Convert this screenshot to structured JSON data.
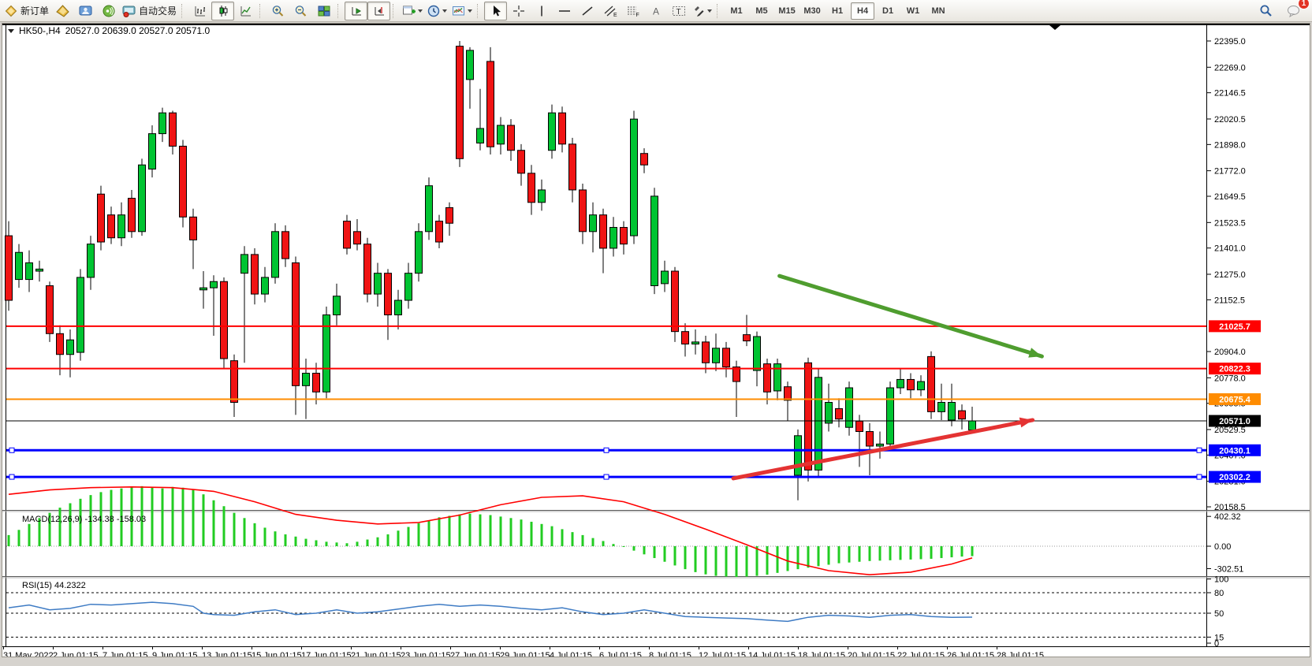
{
  "toolbar": {
    "new_order_label": "新订单",
    "auto_trading_label": "自动交易",
    "timeframes": [
      "M1",
      "M5",
      "M15",
      "M30",
      "H1",
      "H4",
      "D1",
      "W1",
      "MN"
    ],
    "active_timeframe": "H4",
    "notification_count": "1",
    "icons": [
      "new-order",
      "metaeditor",
      "terminal",
      "broadcast",
      "auto-trading",
      "bar-chart",
      "candlestick-chart",
      "line-chart",
      "zoom-in",
      "zoom-out",
      "tile-windows",
      "auto-scroll",
      "chart-shift",
      "new-chart",
      "profiles",
      "templates",
      "cursor",
      "crosshair",
      "vertical-line",
      "horizontal-line",
      "trend-line",
      "equidistant-channel",
      "fibonacci",
      "text",
      "text-label",
      "arrows",
      "search",
      "notifications"
    ]
  },
  "chart": {
    "title_symbol": "HK50-,H4",
    "title_ohlc": "20527.0 20639.0 20527.0 20571.0"
  },
  "chart_data": {
    "type": "candlestick",
    "symbol": "HK50-",
    "period": "H4",
    "current_bar": {
      "open": 20527.0,
      "high": 20639.0,
      "low": 20527.0,
      "close": 20571.0
    },
    "price_axis": {
      "visible_max": 22395.0,
      "visible_min": 20158.5,
      "ticks": [
        22395.0,
        22269.0,
        22146.5,
        22020.5,
        21898.0,
        21772.0,
        21649.5,
        21523.5,
        21401.0,
        21275.0,
        21152.5,
        20904.0,
        20778.0,
        20655.5,
        20529.5,
        20407.0,
        20281.0,
        20158.5
      ]
    },
    "time_labels": [
      "31 May 2022",
      "2 Jun 01:15",
      "7 Jun 01:15",
      "9 Jun 01:15",
      "13 Jun 01:15",
      "15 Jun 01:15",
      "17 Jun 01:15",
      "21 Jun 01:15",
      "23 Jun 01:15",
      "27 Jun 01:15",
      "29 Jun 01:15",
      "4 Jul 01:15",
      "6 Jul 01:15",
      "8 Jul 01:15",
      "12 Jul 01:15",
      "14 Jul 01:15",
      "18 Jul 01:15",
      "20 Jul 01:15",
      "22 Jul 01:15",
      "26 Jul 01:15",
      "28 Jul 01:15"
    ],
    "hlines": [
      {
        "price": 21025.7,
        "color": "#ff0000",
        "width": 2,
        "selected": false
      },
      {
        "price": 20822.3,
        "color": "#ff0000",
        "width": 2,
        "selected": false
      },
      {
        "price": 20675.4,
        "color": "#ff8c00",
        "width": 2,
        "selected": false
      },
      {
        "price": 20571.0,
        "color": "#000000",
        "width": 1,
        "selected": false
      },
      {
        "price": 20430.1,
        "color": "#0000ff",
        "width": 3,
        "selected": true
      },
      {
        "price": 20302.2,
        "color": "#0000ff",
        "width": 3,
        "selected": true
      }
    ],
    "trend_arrows": [
      {
        "color": "#4f9d2f",
        "from_bar": 75.2,
        "from_price": 21267,
        "to_bar": 100.8,
        "to_price": 20881
      },
      {
        "color": "#e43333",
        "from_bar": 70.7,
        "from_price": 20295,
        "to_bar": 99.9,
        "to_price": 20575
      }
    ],
    "candles": [
      [
        21460,
        21530,
        21100,
        21150
      ],
      [
        21250,
        21420,
        21210,
        21380
      ],
      [
        21250,
        21390,
        21190,
        21330
      ],
      [
        21290,
        21340,
        21240,
        21300
      ],
      [
        21220,
        21240,
        20950,
        20990
      ],
      [
        20990,
        21030,
        20790,
        20890
      ],
      [
        20890,
        21010,
        20780,
        20960
      ],
      [
        20900,
        21300,
        20860,
        21260
      ],
      [
        21260,
        21460,
        21200,
        21420
      ],
      [
        21660,
        21700,
        21390,
        21430
      ],
      [
        21560,
        21600,
        21420,
        21450
      ],
      [
        21450,
        21620,
        21410,
        21560
      ],
      [
        21640,
        21680,
        21450,
        21480
      ],
      [
        21480,
        21830,
        21460,
        21800
      ],
      [
        21780,
        21990,
        21740,
        21950
      ],
      [
        21950,
        22075,
        21910,
        22050
      ],
      [
        22050,
        22060,
        21850,
        21890
      ],
      [
        21890,
        21920,
        21500,
        21550
      ],
      [
        21550,
        21590,
        21300,
        21440
      ],
      [
        21200,
        21290,
        21110,
        21210
      ],
      [
        21210,
        21270,
        20980,
        21240
      ],
      [
        21240,
        21260,
        20820,
        20870
      ],
      [
        20860,
        20890,
        20590,
        20660
      ],
      [
        21280,
        21410,
        20850,
        21370
      ],
      [
        21370,
        21400,
        21130,
        21180
      ],
      [
        21180,
        21310,
        21140,
        21260
      ],
      [
        21260,
        21520,
        21230,
        21480
      ],
      [
        21480,
        21510,
        21310,
        21350
      ],
      [
        21330,
        21360,
        20600,
        20740
      ],
      [
        20740,
        20870,
        20580,
        20800
      ],
      [
        20800,
        20850,
        20650,
        20710
      ],
      [
        20710,
        21120,
        20680,
        21080
      ],
      [
        21080,
        21230,
        21030,
        21170
      ],
      [
        21530,
        21560,
        21370,
        21400
      ],
      [
        21480,
        21540,
        21390,
        21420
      ],
      [
        21420,
        21450,
        21140,
        21180
      ],
      [
        21180,
        21330,
        21120,
        21280
      ],
      [
        21280,
        21300,
        20960,
        21080
      ],
      [
        21080,
        21200,
        21010,
        21150
      ],
      [
        21150,
        21330,
        21110,
        21280
      ],
      [
        21280,
        21520,
        21240,
        21480
      ],
      [
        21480,
        21740,
        21440,
        21700
      ],
      [
        21530,
        21560,
        21400,
        21430
      ],
      [
        21595,
        21620,
        21460,
        21520
      ],
      [
        22370,
        22395,
        21790,
        21830
      ],
      [
        22210,
        22365,
        22070,
        22350
      ],
      [
        21905,
        22165,
        21870,
        21975
      ],
      [
        22297,
        22365,
        21850,
        21887
      ],
      [
        21900,
        22030,
        21850,
        21990
      ],
      [
        21990,
        22020,
        21820,
        21870
      ],
      [
        21870,
        21900,
        21700,
        21760
      ],
      [
        21760,
        21800,
        21560,
        21620
      ],
      [
        21620,
        21730,
        21580,
        21680
      ],
      [
        21870,
        22090,
        21830,
        22050
      ],
      [
        22050,
        22080,
        21860,
        21900
      ],
      [
        21900,
        21930,
        21620,
        21680
      ],
      [
        21680,
        21710,
        21420,
        21480
      ],
      [
        21480,
        21620,
        21380,
        21560
      ],
      [
        21560,
        21590,
        21280,
        21400
      ],
      [
        21400,
        21550,
        21360,
        21500
      ],
      [
        21500,
        21530,
        21370,
        21420
      ],
      [
        21460,
        22060,
        21420,
        22020
      ],
      [
        21855,
        21880,
        21760,
        21800
      ],
      [
        21220,
        21690,
        21180,
        21650
      ],
      [
        21230,
        21340,
        21190,
        21290
      ],
      [
        21290,
        21310,
        20950,
        21000
      ],
      [
        21000,
        21040,
        20880,
        20940
      ],
      [
        20940,
        21010,
        20890,
        20950
      ],
      [
        20950,
        20980,
        20800,
        20850
      ],
      [
        20850,
        20990,
        20810,
        20920
      ],
      [
        20920,
        20950,
        20780,
        20830
      ],
      [
        20830,
        20860,
        20590,
        20760
      ],
      [
        20985,
        21080,
        20930,
        20955
      ],
      [
        20813,
        21000,
        20737,
        20976
      ],
      [
        20845,
        20870,
        20650,
        20710
      ],
      [
        20715,
        20870,
        20670,
        20845
      ],
      [
        20735,
        20760,
        20570,
        20670
      ],
      [
        20310,
        20530,
        20190,
        20500
      ],
      [
        20850,
        20875,
        20280,
        20335
      ],
      [
        20335,
        20820,
        20300,
        20780
      ],
      [
        20560,
        20750,
        20520,
        20660
      ],
      [
        20630,
        20680,
        20540,
        20580
      ],
      [
        20540,
        20760,
        20500,
        20730
      ],
      [
        20570,
        20600,
        20350,
        20520
      ],
      [
        20520,
        20560,
        20310,
        20450
      ],
      [
        20450,
        20520,
        20390,
        20460
      ],
      [
        20460,
        20760,
        20430,
        20730
      ],
      [
        20730,
        20820,
        20700,
        20770
      ],
      [
        20770,
        20800,
        20680,
        20720
      ],
      [
        20720,
        20790,
        20690,
        20760
      ],
      [
        20880,
        20905,
        20580,
        20615
      ],
      [
        20615,
        20750,
        20575,
        20660
      ],
      [
        20575,
        20750,
        20545,
        20660
      ],
      [
        20620,
        20650,
        20530,
        20580
      ],
      [
        20527,
        20639,
        20527,
        20571
      ]
    ],
    "macd": {
      "label": "MACD(12,26,9)",
      "value": "-134.38",
      "signal_value": "-158.03",
      "axis_ticks": [
        402.32,
        0.0,
        -302.51
      ],
      "histogram": [
        150,
        220,
        300,
        380,
        450,
        520,
        580,
        640,
        690,
        730,
        760,
        780,
        800,
        810,
        800,
        780,
        800,
        790,
        760,
        700,
        620,
        540,
        450,
        380,
        310,
        250,
        200,
        160,
        130,
        100,
        80,
        60,
        50,
        40,
        60,
        90,
        120,
        160,
        210,
        260,
        310,
        350,
        390,
        410,
        430,
        440,
        430,
        420,
        400,
        380,
        360,
        330,
        300,
        270,
        230,
        190,
        150,
        110,
        70,
        30,
        -10,
        -60,
        -110,
        -160,
        -210,
        -260,
        -310,
        -350,
        -380,
        -400,
        -410,
        -415,
        -410,
        -400,
        -385,
        -360,
        -335,
        -310,
        -290,
        -270,
        -250,
        -230,
        -220,
        -210,
        -200,
        -195,
        -190,
        -185,
        -180,
        -175,
        -170,
        -160,
        -150,
        -140,
        -134
      ],
      "signal_points": [
        [
          0,
          700
        ],
        [
          4,
          760
        ],
        [
          8,
          790
        ],
        [
          12,
          800
        ],
        [
          16,
          790
        ],
        [
          20,
          740
        ],
        [
          24,
          600
        ],
        [
          28,
          430
        ],
        [
          32,
          350
        ],
        [
          36,
          300
        ],
        [
          40,
          320
        ],
        [
          44,
          420
        ],
        [
          48,
          560
        ],
        [
          52,
          660
        ],
        [
          56,
          680
        ],
        [
          60,
          600
        ],
        [
          64,
          430
        ],
        [
          68,
          230
        ],
        [
          72,
          20
        ],
        [
          76,
          -200
        ],
        [
          80,
          -330
        ],
        [
          84,
          -385
        ],
        [
          88,
          -350
        ],
        [
          92,
          -240
        ],
        [
          94,
          -158
        ]
      ]
    },
    "rsi": {
      "label": "RSI(15)",
      "value": "44.2322",
      "axis_ticks": [
        100,
        80,
        50,
        15,
        0
      ],
      "dashed_levels": [
        80,
        50,
        15
      ],
      "points": [
        [
          0,
          58
        ],
        [
          2,
          62
        ],
        [
          4,
          55
        ],
        [
          6,
          57
        ],
        [
          8,
          63
        ],
        [
          10,
          62
        ],
        [
          12,
          64
        ],
        [
          14,
          66
        ],
        [
          16,
          64
        ],
        [
          18,
          60
        ],
        [
          19,
          50
        ],
        [
          20,
          48
        ],
        [
          22,
          47
        ],
        [
          24,
          52
        ],
        [
          26,
          55
        ],
        [
          28,
          48
        ],
        [
          30,
          50
        ],
        [
          32,
          55
        ],
        [
          34,
          50
        ],
        [
          36,
          52
        ],
        [
          38,
          56
        ],
        [
          40,
          60
        ],
        [
          42,
          63
        ],
        [
          44,
          60
        ],
        [
          46,
          62
        ],
        [
          48,
          60
        ],
        [
          50,
          57
        ],
        [
          52,
          55
        ],
        [
          54,
          58
        ],
        [
          56,
          52
        ],
        [
          58,
          48
        ],
        [
          60,
          50
        ],
        [
          62,
          55
        ],
        [
          64,
          50
        ],
        [
          66,
          45
        ],
        [
          68,
          44
        ],
        [
          70,
          43
        ],
        [
          72,
          42
        ],
        [
          74,
          40
        ],
        [
          76,
          38
        ],
        [
          78,
          44
        ],
        [
          80,
          47
        ],
        [
          82,
          46
        ],
        [
          84,
          44
        ],
        [
          86,
          47
        ],
        [
          88,
          48
        ],
        [
          90,
          45
        ],
        [
          92,
          44
        ],
        [
          94,
          44.2
        ]
      ]
    }
  }
}
